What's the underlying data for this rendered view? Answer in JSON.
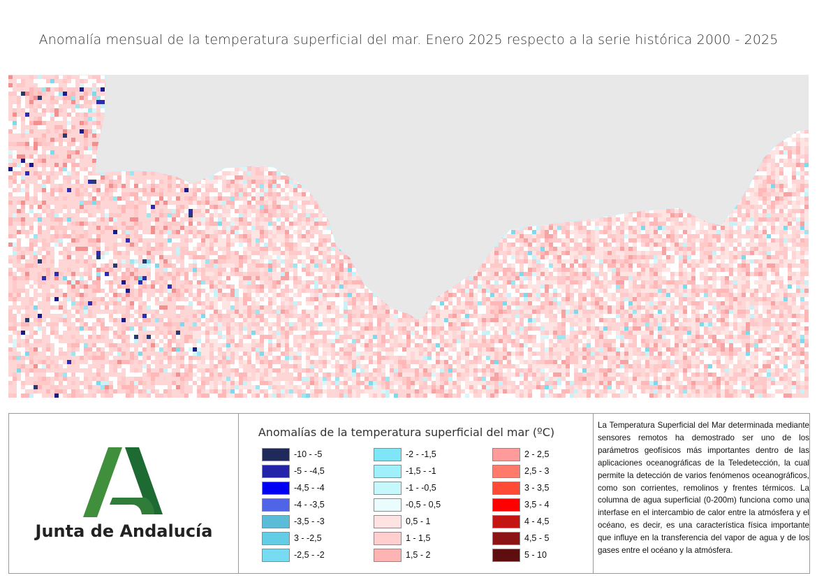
{
  "title": "Anomalía mensual de la temperatura superficial del mar. Enero 2025 respecto a la serie histórica 2000 - 2025",
  "map": {
    "land_color": "#e8e8e8",
    "water_palette": [
      "#ffffff",
      "#ffe4e4",
      "#ffd6d6",
      "#ffc9c9",
      "#ffb7b7",
      "#f7a3a3",
      "#f29090",
      "#d9f6fb",
      "#c8f1f8",
      "#9de6f1",
      "#7fd9ec",
      "#2d2dad",
      "#1a1a8c",
      "#2a3a6e"
    ]
  },
  "logo": {
    "text": "Junta de Andalucía",
    "colors": [
      "#4a9a46",
      "#1f6b34"
    ]
  },
  "legend": {
    "title": "Anomalías de la temperatura superficial del mar (ºC)",
    "items": [
      {
        "label": "-10 - -5",
        "color": "#1f2a5a"
      },
      {
        "label": "-5 - -4,5",
        "color": "#2424a8"
      },
      {
        "label": "-4,5 - -4",
        "color": "#0000f5"
      },
      {
        "label": "-4 - -3,5",
        "color": "#4f64e6"
      },
      {
        "label": "-3,5 - -3",
        "color": "#5bbcd8"
      },
      {
        "label": "3 - -2,5",
        "color": "#63cde6"
      },
      {
        "label": "-2,5 - -2",
        "color": "#77dcf2"
      },
      {
        "label": "-2 - -1,5",
        "color": "#7fe6f7"
      },
      {
        "label": "-1,5 - -1",
        "color": "#9ff0fa"
      },
      {
        "label": "-1 - -0,5",
        "color": "#c6f7fb"
      },
      {
        "label": "-0,5 - 0,5",
        "color": "#eafcfd"
      },
      {
        "label": "0,5 - 1",
        "color": "#ffe3e3"
      },
      {
        "label": "1 - 1,5",
        "color": "#ffcfcf"
      },
      {
        "label": "1,5 - 2",
        "color": "#ffb4b4"
      },
      {
        "label": "2 - 2,5",
        "color": "#ff9b9b"
      },
      {
        "label": "2,5 - 3",
        "color": "#ff7a6a"
      },
      {
        "label": "3 - 3,5",
        "color": "#ff4a36"
      },
      {
        "label": "3,5 - 4",
        "color": "#ff0000"
      },
      {
        "label": "4 - 4,5",
        "color": "#c41414"
      },
      {
        "label": "4,5 - 5",
        "color": "#8c1414"
      },
      {
        "label": "5 - 10",
        "color": "#5e0e0e"
      }
    ]
  },
  "description": "La Temperatura Superficial del Mar determinada mediante sensores remotos ha demostrado ser uno de los parámetros geofísicos más importantes dentro de las aplicaciones oceanográficas de la Teledetección, la cual permite la detección de varios fenómenos oceanográficos, como son corrientes, remolinos y frentes térmicos. La columna de agua superficial (0-200m) funciona como una interfase en el intercambio de calor entre la atmósfera y el océano, es decir, es una característica física importante que influye en la transferencia del vapor de agua y de los gases entre el océano y la atmósfera."
}
